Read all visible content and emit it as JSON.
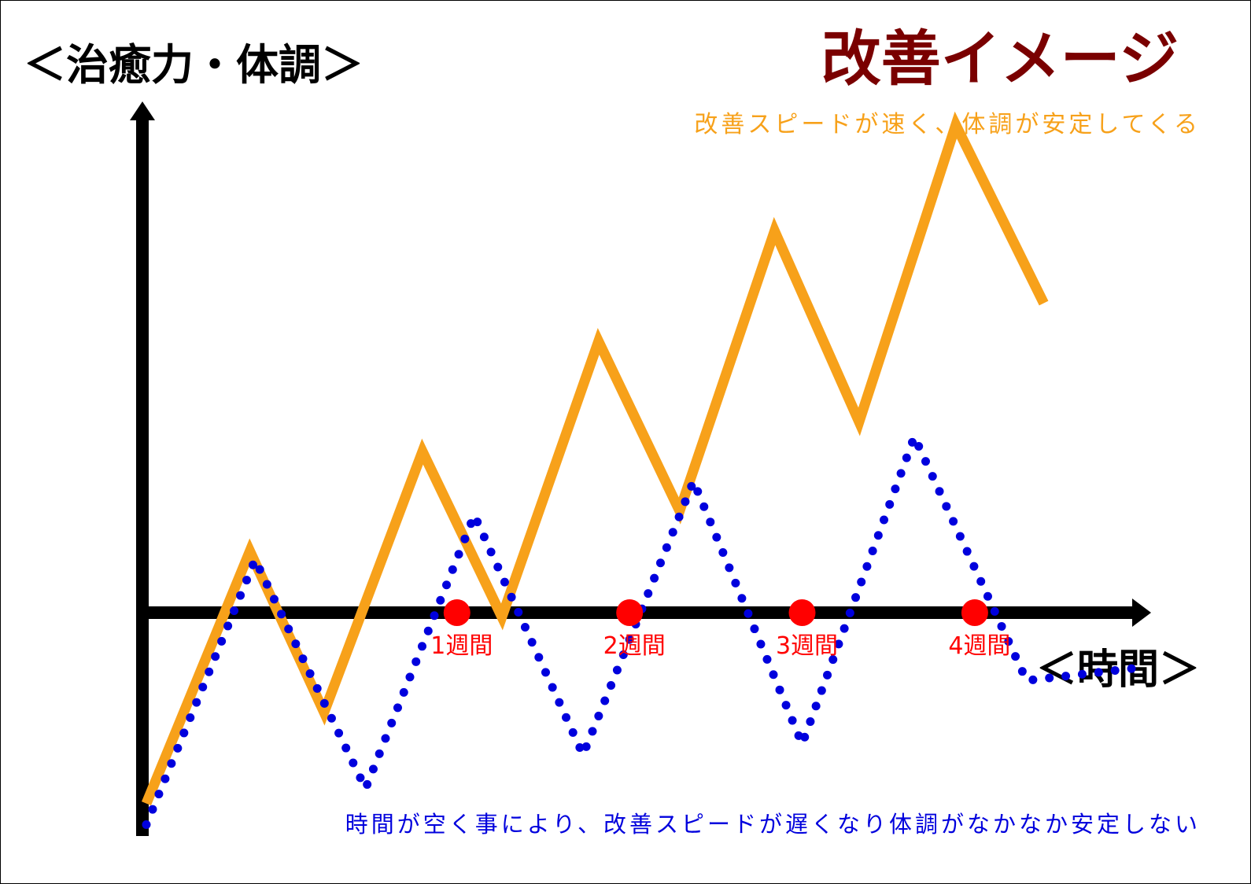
{
  "chart_data": {
    "type": "line",
    "title": "改善イメージ",
    "ylabel": "＜治癒力・体調＞",
    "xlabel": "＜時間＞",
    "categories": [
      "1週間",
      "2週間",
      "3週間",
      "4週間"
    ],
    "marker_x": [
      1,
      2,
      3,
      4
    ],
    "xlim": [
      -0.8,
      5.4
    ],
    "ylim": [
      -10,
      22
    ],
    "series": [
      {
        "style": "solid",
        "color": "#F7A11A",
        "annotation": "改善スピードが速く、体調が安定してくる",
        "x": [
          -0.8,
          -0.2,
          0.23,
          0.8,
          1.26,
          1.82,
          2.29,
          2.84,
          3.33,
          3.89,
          4.4
        ],
        "y": [
          -9,
          2.9,
          -4.7,
          7.6,
          -0.2,
          12.8,
          4.8,
          18,
          9,
          23,
          14.6
        ]
      },
      {
        "style": "dotted",
        "color": "#0000DD",
        "annotation": "時間が空く事により、改善スピードが遅くなり体調がなかなか安定しない",
        "x": [
          -0.8,
          -0.17,
          0.47,
          1.1,
          1.73,
          2.37,
          3.0,
          3.65,
          4.3,
          4.95
        ],
        "y": [
          -10,
          2.5,
          -8.3,
          4.6,
          -6.7,
          6.2,
          -6.2,
          8.3,
          -3.2,
          -2.6
        ]
      }
    ]
  },
  "colors": {
    "axis": "#000000",
    "title": "#7A0000",
    "marker": "#FF0000",
    "marker_label": "#FF0000"
  }
}
